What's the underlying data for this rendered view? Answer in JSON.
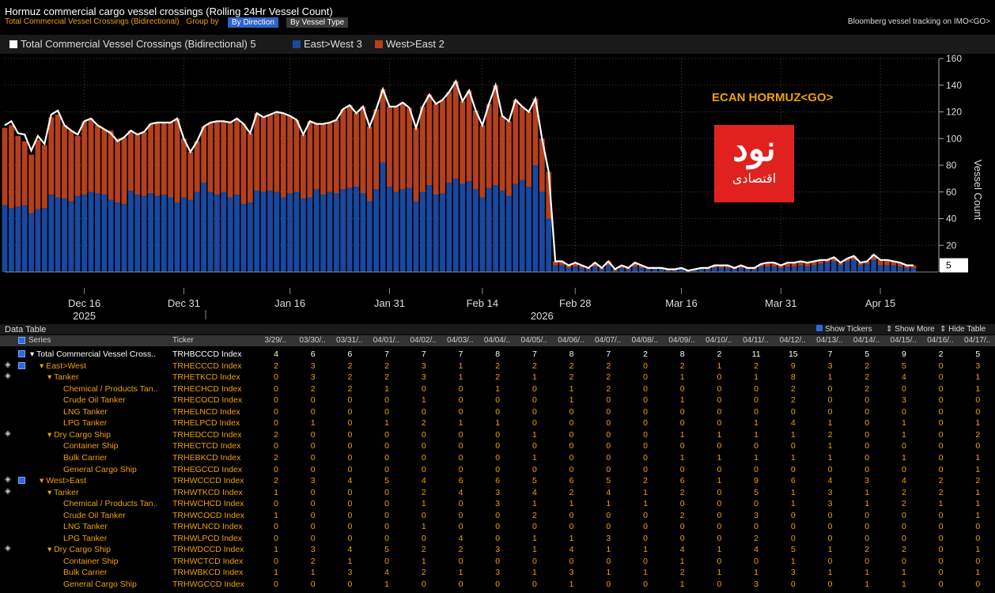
{
  "header": {
    "title": "Hormuz commercial cargo vessel crossings (Rolling 24Hr Vessel Count)",
    "subtitle": "Total Commercial Vessel Crossings (Bidirectional)",
    "group_by": "Group by",
    "btn_direction": "By Direction",
    "btn_type": "By Vessel Type",
    "source": "Bloomberg vessel tracking on IMO<GO>"
  },
  "legend": {
    "total": "Total Commercial Vessel Crossings (Bidirectional) 5",
    "east": "East>West 3",
    "west": "West>East 2"
  },
  "annotation": "ECAN HORMUZ<GO>",
  "watermark": {
    "text1": "نود",
    "text2": "اقتصادی"
  },
  "colors": {
    "east": "#1848a0",
    "west": "#b4401e",
    "line": "#ffffff",
    "accent": "#f0a000"
  },
  "chart_data": {
    "type": "bar",
    "stacked": true,
    "ylabel": "Vessel Count",
    "ylim": [
      0,
      160
    ],
    "yticks": [
      20,
      40,
      60,
      80,
      100,
      120,
      140,
      160
    ],
    "x_labels": [
      {
        "label": "Dec 16",
        "sub": "2025",
        "index": 12
      },
      {
        "label": "Dec 31",
        "sub": "",
        "index": 27
      },
      {
        "label": "Jan 16",
        "sub": "",
        "index": 43
      },
      {
        "label": "Jan 31",
        "sub": "2026",
        "index": 58
      },
      {
        "label": "Feb 14",
        "sub": "",
        "index": 72
      },
      {
        "label": "Feb 28",
        "sub": "",
        "index": 86
      },
      {
        "label": "Mar 16",
        "sub": "",
        "index": 102
      },
      {
        "label": "Mar 31",
        "sub": "",
        "index": 117
      },
      {
        "label": "Apr 15",
        "sub": "",
        "index": 132
      }
    ],
    "year_labels": [
      {
        "label": "2025",
        "index": 12
      },
      {
        "label": "2026",
        "index": 81
      }
    ],
    "last_value_label": "5",
    "series": [
      {
        "name": "East>West",
        "values": [
          50,
          48,
          49,
          50,
          44,
          47,
          48,
          58,
          56,
          55,
          53,
          57,
          58,
          60,
          59,
          58,
          54,
          52,
          51,
          61,
          58,
          57,
          59,
          57,
          58,
          56,
          52,
          56,
          54,
          60,
          67,
          60,
          58,
          60,
          56,
          58,
          51,
          52,
          61,
          60,
          61,
          60,
          56,
          59,
          60,
          55,
          56,
          62,
          58,
          60,
          59,
          62,
          63,
          64,
          59,
          53,
          62,
          82,
          64,
          60,
          62,
          63,
          53,
          60,
          65,
          58,
          59,
          67,
          70,
          66,
          68,
          62,
          56,
          63,
          65,
          61,
          57,
          66,
          69,
          64,
          80,
          60,
          40,
          5,
          5,
          3,
          4,
          3,
          2,
          4,
          2,
          5,
          1,
          3,
          2,
          4,
          3,
          2,
          2,
          2,
          1,
          1,
          2,
          1,
          1,
          2,
          2,
          3,
          3,
          3,
          2,
          3,
          2,
          2,
          4,
          4,
          4,
          3,
          4,
          4,
          5,
          4,
          5,
          6,
          7,
          8,
          5,
          8,
          9,
          5,
          6,
          9,
          5,
          5,
          5,
          4,
          3,
          3
        ]
      },
      {
        "name": "West>East",
        "values": [
          58,
          62,
          53,
          48,
          44,
          52,
          47,
          58,
          62,
          55,
          53,
          45,
          55,
          55,
          51,
          49,
          52,
          48,
          50,
          45,
          45,
          48,
          52,
          55,
          54,
          56,
          63,
          44,
          36,
          38,
          42,
          52,
          55,
          53,
          56,
          57,
          60,
          52,
          58,
          56,
          57,
          60,
          63,
          58,
          54,
          48,
          57,
          49,
          53,
          52,
          55,
          60,
          62,
          55,
          65,
          56,
          60,
          55,
          60,
          64,
          65,
          60,
          55,
          64,
          68,
          68,
          70,
          68,
          73,
          62,
          68,
          59,
          54,
          63,
          75,
          56,
          56,
          63,
          55,
          56,
          50,
          40,
          35,
          3,
          3,
          2,
          3,
          2,
          1,
          3,
          1,
          3,
          1,
          2,
          1,
          3,
          2,
          1,
          1,
          1,
          1,
          1,
          1,
          0,
          1,
          1,
          1,
          2,
          2,
          2,
          1,
          2,
          1,
          1,
          2,
          3,
          3,
          2,
          3,
          3,
          3,
          3,
          3,
          3,
          2,
          3,
          2,
          2,
          3,
          2,
          2,
          4,
          4,
          4,
          3,
          3,
          2,
          2
        ]
      }
    ],
    "total": [
      110,
      113,
      104,
      103,
      91,
      102,
      96,
      118,
      121,
      110,
      106,
      103,
      113,
      115,
      110,
      107,
      104,
      98,
      101,
      106,
      103,
      105,
      111,
      112,
      112,
      112,
      115,
      100,
      90,
      98,
      109,
      112,
      113,
      113,
      112,
      115,
      111,
      104,
      119,
      116,
      118,
      120,
      119,
      117,
      114,
      103,
      113,
      111,
      111,
      112,
      114,
      122,
      125,
      119,
      124,
      109,
      122,
      137,
      124,
      124,
      127,
      123,
      108,
      124,
      133,
      126,
      129,
      135,
      143,
      128,
      136,
      121,
      110,
      126,
      140,
      117,
      113,
      129,
      124,
      120,
      130,
      100,
      75,
      8,
      8,
      5,
      7,
      5,
      3,
      7,
      3,
      8,
      2,
      5,
      3,
      7,
      5,
      3,
      3,
      3,
      2,
      2,
      3,
      1,
      2,
      3,
      3,
      5,
      5,
      5,
      3,
      5,
      3,
      3,
      6,
      7,
      7,
      5,
      7,
      7,
      8,
      7,
      8,
      9,
      9,
      11,
      7,
      10,
      12,
      7,
      8,
      13,
      9,
      9,
      8,
      7,
      5,
      5
    ]
  },
  "data_table": {
    "title": "Data Table",
    "options": [
      "Show Tickers",
      "Show More",
      "Hide Table"
    ],
    "col_series": "Series",
    "col_ticker": "Ticker",
    "dates": [
      "3/29/..",
      "03/30/..",
      "03/31/..",
      "04/01/..",
      "04/02/..",
      "04/03/..",
      "04/04/..",
      "04/05/..",
      "04/06/..",
      "04/07/..",
      "04/08/..",
      "04/09/..",
      "04/10/..",
      "04/11/..",
      "04/12/..",
      "04/13/..",
      "04/14/..",
      "04/15/..",
      "04/16/..",
      "04/17/.."
    ],
    "rows": [
      {
        "name": "Total Commercial Vessel Cross..",
        "ticker": "TRHBCCCD Index",
        "indent": 0,
        "arrow": "▾",
        "diamond": false,
        "check": true,
        "values": [
          "4",
          "6",
          "6",
          "7",
          "7",
          "7",
          "8",
          "7",
          "8",
          "7",
          "2",
          "8",
          "2",
          "11",
          "15",
          "7",
          "5",
          "9",
          "2",
          "5"
        ]
      },
      {
        "name": "East>West",
        "ticker": "TRHECCCD Index",
        "indent": 1,
        "arrow": "▾",
        "diamond": true,
        "check": true,
        "values": [
          "2",
          "3",
          "2",
          "2",
          "3",
          "1",
          "2",
          "2",
          "2",
          "2",
          "0",
          "2",
          "1",
          "2",
          "9",
          "3",
          "2",
          "5",
          "0",
          "3"
        ]
      },
      {
        "name": "Tanker",
        "ticker": "TRHETKCD Index",
        "indent": 2,
        "arrow": "▾",
        "diamond": true,
        "check": false,
        "values": [
          "0",
          "3",
          "2",
          "2",
          "3",
          "1",
          "2",
          "1",
          "2",
          "2",
          "0",
          "1",
          "0",
          "1",
          "8",
          "1",
          "2",
          "4",
          "0",
          "1"
        ]
      },
      {
        "name": "Chemical / Products Tan..",
        "ticker": "TRHECHCD Index",
        "indent": 3,
        "arrow": "",
        "diamond": false,
        "check": false,
        "values": [
          "0",
          "2",
          "2",
          "1",
          "0",
          "0",
          "1",
          "0",
          "1",
          "2",
          "0",
          "0",
          "0",
          "0",
          "2",
          "0",
          "2",
          "0",
          "0",
          "1"
        ]
      },
      {
        "name": "Crude Oil Tanker",
        "ticker": "TRHECOCD Index",
        "indent": 3,
        "arrow": "",
        "diamond": false,
        "check": false,
        "values": [
          "0",
          "0",
          "0",
          "0",
          "1",
          "0",
          "0",
          "0",
          "1",
          "0",
          "0",
          "1",
          "0",
          "0",
          "2",
          "0",
          "0",
          "3",
          "0",
          "0"
        ]
      },
      {
        "name": "LNG Tanker",
        "ticker": "TRHELNCD Index",
        "indent": 3,
        "arrow": "",
        "diamond": false,
        "check": false,
        "values": [
          "0",
          "0",
          "0",
          "0",
          "0",
          "0",
          "0",
          "0",
          "0",
          "0",
          "0",
          "0",
          "0",
          "0",
          "0",
          "0",
          "0",
          "0",
          "0",
          "0"
        ]
      },
      {
        "name": "LPG Tanker",
        "ticker": "TRHELPCD Index",
        "indent": 3,
        "arrow": "",
        "diamond": false,
        "check": false,
        "values": [
          "0",
          "1",
          "0",
          "1",
          "2",
          "1",
          "1",
          "0",
          "0",
          "0",
          "0",
          "0",
          "0",
          "1",
          "4",
          "1",
          "0",
          "1",
          "0",
          "1"
        ]
      },
      {
        "name": "Dry Cargo Ship",
        "ticker": "TRHEDCCD Index",
        "indent": 2,
        "arrow": "▾",
        "diamond": true,
        "check": false,
        "values": [
          "2",
          "0",
          "0",
          "0",
          "0",
          "0",
          "0",
          "1",
          "0",
          "0",
          "0",
          "1",
          "1",
          "1",
          "1",
          "2",
          "0",
          "1",
          "0",
          "2"
        ]
      },
      {
        "name": "Container Ship",
        "ticker": "TRHECTCD Index",
        "indent": 3,
        "arrow": "",
        "diamond": false,
        "check": false,
        "values": [
          "0",
          "0",
          "0",
          "0",
          "0",
          "0",
          "0",
          "0",
          "0",
          "0",
          "0",
          "0",
          "0",
          "0",
          "0",
          "1",
          "0",
          "0",
          "0",
          "0"
        ]
      },
      {
        "name": "Bulk Carrier",
        "ticker": "TRHEBKCD Index",
        "indent": 3,
        "arrow": "",
        "diamond": false,
        "check": false,
        "values": [
          "2",
          "0",
          "0",
          "0",
          "0",
          "0",
          "0",
          "1",
          "0",
          "0",
          "0",
          "1",
          "1",
          "1",
          "1",
          "1",
          "0",
          "1",
          "0",
          "1"
        ]
      },
      {
        "name": "General Cargo Ship",
        "ticker": "TRHEGCCD Index",
        "indent": 3,
        "arrow": "",
        "diamond": false,
        "check": false,
        "values": [
          "0",
          "0",
          "0",
          "0",
          "0",
          "0",
          "0",
          "0",
          "0",
          "0",
          "0",
          "0",
          "0",
          "0",
          "0",
          "0",
          "0",
          "0",
          "0",
          "1"
        ]
      },
      {
        "name": "West>East",
        "ticker": "TRHWCCCD Index",
        "indent": 1,
        "arrow": "▾",
        "diamond": true,
        "check": true,
        "values": [
          "2",
          "3",
          "4",
          "5",
          "4",
          "6",
          "6",
          "5",
          "6",
          "5",
          "2",
          "6",
          "1",
          "9",
          "6",
          "4",
          "3",
          "4",
          "2",
          "2"
        ]
      },
      {
        "name": "Tanker",
        "ticker": "TRHWTKCD Index",
        "indent": 2,
        "arrow": "▾",
        "diamond": true,
        "check": false,
        "values": [
          "1",
          "0",
          "0",
          "0",
          "2",
          "4",
          "3",
          "4",
          "2",
          "4",
          "1",
          "2",
          "0",
          "5",
          "1",
          "3",
          "1",
          "2",
          "2",
          "1"
        ]
      },
      {
        "name": "Chemical / Products Tan..",
        "ticker": "TRHWCHCD Index",
        "indent": 3,
        "arrow": "",
        "diamond": false,
        "check": false,
        "values": [
          "0",
          "0",
          "0",
          "0",
          "1",
          "0",
          "3",
          "1",
          "1",
          "1",
          "1",
          "0",
          "0",
          "0",
          "1",
          "3",
          "1",
          "2",
          "1",
          "1"
        ]
      },
      {
        "name": "Crude Oil Tanker",
        "ticker": "TRHWCOCD Index",
        "indent": 3,
        "arrow": "",
        "diamond": false,
        "check": false,
        "values": [
          "1",
          "0",
          "0",
          "0",
          "0",
          "0",
          "0",
          "2",
          "0",
          "0",
          "0",
          "2",
          "0",
          "3",
          "0",
          "0",
          "0",
          "0",
          "0",
          "1"
        ]
      },
      {
        "name": "LNG Tanker",
        "ticker": "TRHWLNCD Index",
        "indent": 3,
        "arrow": "",
        "diamond": false,
        "check": false,
        "values": [
          "0",
          "0",
          "0",
          "0",
          "1",
          "0",
          "0",
          "0",
          "0",
          "0",
          "0",
          "0",
          "0",
          "0",
          "0",
          "0",
          "0",
          "0",
          "0",
          "0"
        ]
      },
      {
        "name": "LPG Tanker",
        "ticker": "TRHWLPCD Index",
        "indent": 3,
        "arrow": "",
        "diamond": false,
        "check": false,
        "values": [
          "0",
          "0",
          "0",
          "0",
          "0",
          "4",
          "0",
          "1",
          "1",
          "3",
          "0",
          "0",
          "0",
          "2",
          "0",
          "0",
          "0",
          "0",
          "0",
          "0"
        ]
      },
      {
        "name": "Dry Cargo Ship",
        "ticker": "TRHWDCCD Index",
        "indent": 2,
        "arrow": "▾",
        "diamond": true,
        "check": false,
        "values": [
          "1",
          "3",
          "4",
          "5",
          "2",
          "2",
          "3",
          "1",
          "4",
          "1",
          "1",
          "4",
          "1",
          "4",
          "5",
          "1",
          "2",
          "2",
          "0",
          "1"
        ]
      },
      {
        "name": "Container Ship",
        "ticker": "TRHWCTCD Index",
        "indent": 3,
        "arrow": "",
        "diamond": false,
        "check": false,
        "values": [
          "0",
          "2",
          "1",
          "0",
          "1",
          "0",
          "0",
          "0",
          "0",
          "0",
          "0",
          "1",
          "0",
          "0",
          "1",
          "0",
          "0",
          "0",
          "0",
          "0"
        ]
      },
      {
        "name": "Bulk Carrier",
        "ticker": "TRHWBKCD Index",
        "indent": 3,
        "arrow": "",
        "diamond": false,
        "check": false,
        "values": [
          "1",
          "1",
          "3",
          "4",
          "2",
          "1",
          "3",
          "1",
          "3",
          "1",
          "1",
          "2",
          "1",
          "1",
          "3",
          "1",
          "1",
          "1",
          "0",
          "1"
        ]
      },
      {
        "name": "General Cargo Ship",
        "ticker": "TRHWGCCD Index",
        "indent": 3,
        "arrow": "",
        "diamond": false,
        "check": false,
        "values": [
          "0",
          "0",
          "0",
          "1",
          "0",
          "0",
          "0",
          "0",
          "1",
          "0",
          "0",
          "1",
          "0",
          "3",
          "0",
          "0",
          "1",
          "1",
          "0",
          "0"
        ]
      }
    ]
  }
}
